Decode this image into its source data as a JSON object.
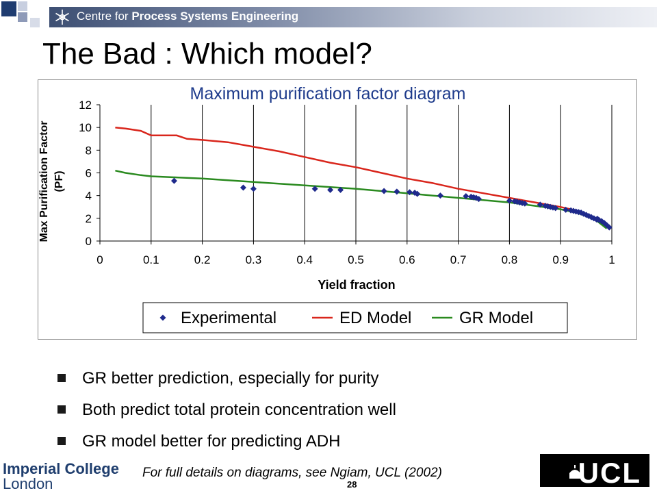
{
  "header": {
    "institution_prefix": "Centre for ",
    "institution_bold": "Process Systems Engineering"
  },
  "slide": {
    "title": "The Bad : Which model?",
    "bullets": [
      "GR better prediction, especially for purity",
      "Both predict total protein concentration well",
      "GR model better for predicting ADH"
    ],
    "footnote": "For full details on diagrams, see Ngiam, UCL (2002)",
    "page_number": "28"
  },
  "footer": {
    "imperial_line1": "Imperial College",
    "imperial_line2": "London",
    "ucl_label": "UCL"
  },
  "colors": {
    "ed_model": "#d9261c",
    "gr_model": "#2a8a1f",
    "experimental": "#1f2a8c",
    "chart_title": "#1f3c8c"
  },
  "chart_data": {
    "type": "scatter",
    "title": "Maximum purification factor diagram",
    "xlabel": "Yield fraction",
    "ylabel_line1": "Max Purification Factor",
    "ylabel_line2": "(PF)",
    "xlim": [
      0,
      1
    ],
    "ylim": [
      0,
      12
    ],
    "xticks": [
      0,
      0.1,
      0.2,
      0.3,
      0.4,
      0.5,
      0.6,
      0.7,
      0.8,
      0.9,
      1
    ],
    "xtick_labels": [
      "0",
      "0.1",
      "0.2",
      "0.3",
      "0.4",
      "0.5",
      "0.6",
      "0.7",
      "0.8",
      "0.9",
      "1"
    ],
    "yticks": [
      0,
      2,
      4,
      6,
      8,
      10,
      12
    ],
    "ytick_labels": [
      "0",
      "2",
      "4",
      "6",
      "8",
      "10",
      "12"
    ],
    "grid": "vertical",
    "legend": "bottom",
    "series": [
      {
        "name": "Experimental",
        "kind": "points",
        "x": [
          0.145,
          0.28,
          0.3,
          0.42,
          0.45,
          0.47,
          0.555,
          0.58,
          0.605,
          0.615,
          0.62,
          0.665,
          0.715,
          0.725,
          0.73,
          0.735,
          0.74,
          0.8,
          0.81,
          0.815,
          0.82,
          0.825,
          0.83,
          0.86,
          0.87,
          0.875,
          0.88,
          0.885,
          0.89,
          0.91,
          0.92,
          0.925,
          0.93,
          0.935,
          0.94,
          0.945,
          0.95,
          0.955,
          0.96,
          0.965,
          0.97,
          0.972,
          0.975,
          0.98,
          0.985,
          0.99,
          0.995
        ],
        "y": [
          5.3,
          4.7,
          4.6,
          4.6,
          4.5,
          4.5,
          4.4,
          4.35,
          4.3,
          4.25,
          4.15,
          4.0,
          3.95,
          3.9,
          3.85,
          3.8,
          3.7,
          3.55,
          3.5,
          3.45,
          3.4,
          3.35,
          3.3,
          3.2,
          3.1,
          3.05,
          3.0,
          2.95,
          2.9,
          2.75,
          2.7,
          2.65,
          2.6,
          2.55,
          2.5,
          2.4,
          2.3,
          2.2,
          2.1,
          2.0,
          1.9,
          1.95,
          1.85,
          1.75,
          1.6,
          1.4,
          1.2
        ]
      },
      {
        "name": "ED Model",
        "kind": "line",
        "x": [
          0.03,
          0.05,
          0.08,
          0.1,
          0.15,
          0.17,
          0.2,
          0.25,
          0.3,
          0.35,
          0.4,
          0.45,
          0.5,
          0.55,
          0.6,
          0.65,
          0.7,
          0.75,
          0.8,
          0.85,
          0.9,
          0.93,
          0.95,
          0.97,
          0.99
        ],
        "y": [
          10.0,
          9.9,
          9.7,
          9.3,
          9.3,
          9.0,
          8.9,
          8.7,
          8.3,
          7.9,
          7.4,
          6.9,
          6.5,
          6.0,
          5.5,
          5.1,
          4.6,
          4.2,
          3.8,
          3.4,
          3.0,
          2.7,
          2.3,
          1.9,
          1.2
        ]
      },
      {
        "name": "GR Model",
        "kind": "line",
        "x": [
          0.03,
          0.05,
          0.08,
          0.1,
          0.15,
          0.2,
          0.3,
          0.4,
          0.5,
          0.6,
          0.7,
          0.8,
          0.85,
          0.9,
          0.93,
          0.95,
          0.97,
          0.99
        ],
        "y": [
          6.2,
          6.0,
          5.8,
          5.7,
          5.6,
          5.5,
          5.2,
          4.9,
          4.6,
          4.2,
          3.8,
          3.4,
          3.1,
          2.8,
          2.5,
          2.2,
          1.8,
          1.1
        ]
      }
    ]
  }
}
